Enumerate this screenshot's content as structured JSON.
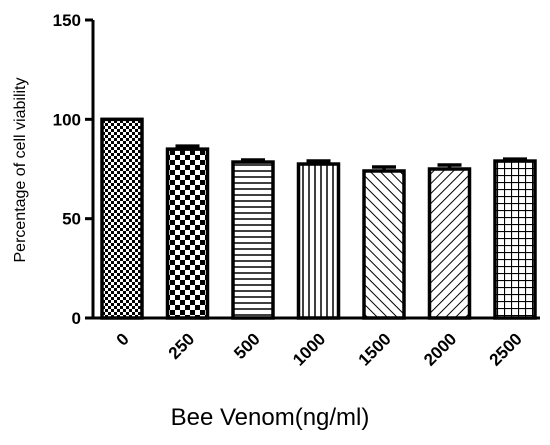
{
  "chart_data": {
    "type": "bar",
    "title": "",
    "xlabel": "Bee Venom(ng/ml)",
    "ylabel": "Percentage of cell viability",
    "ylim": [
      0,
      150
    ],
    "yticks": [
      "0",
      "50",
      "100",
      "150"
    ],
    "categories": [
      "0",
      "250",
      "500",
      "1000",
      "1500",
      "2000",
      "2500"
    ],
    "values": [
      100,
      85,
      78.5,
      77.5,
      74,
      75,
      79
    ],
    "errors": [
      0,
      1.5,
      1,
      1.5,
      2,
      2,
      1
    ],
    "patterns": [
      "checker-fine",
      "checker-coarse",
      "horizontal-lines",
      "vertical-lines",
      "diagonal-ne",
      "diagonal-nw",
      "grid-squares"
    ],
    "grid": false,
    "legend": "none",
    "bar_color": "#000000",
    "background_color": "#ffffff"
  }
}
